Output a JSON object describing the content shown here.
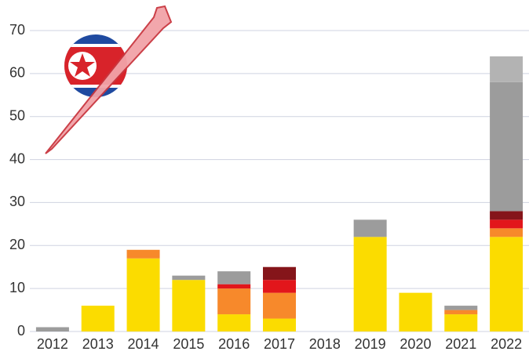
{
  "chart_data": {
    "type": "stacked-bar",
    "categories": [
      "2012",
      "2013",
      "2014",
      "2015",
      "2016",
      "2017",
      "2018",
      "2019",
      "2020",
      "2021",
      "2022"
    ],
    "series": [
      {
        "color": "#fbdc00",
        "values": [
          0,
          6,
          17,
          12,
          4,
          3,
          0,
          22,
          9,
          4,
          22
        ]
      },
      {
        "color": "#f7892b",
        "values": [
          0,
          0,
          2,
          0,
          6,
          6,
          0,
          0,
          0,
          1,
          2
        ]
      },
      {
        "color": "#e2161b",
        "values": [
          0,
          0,
          0,
          0,
          1,
          3,
          0,
          0,
          0,
          0,
          2
        ]
      },
      {
        "color": "#85151a",
        "values": [
          0,
          0,
          0,
          0,
          0,
          3,
          0,
          0,
          0,
          0,
          2
        ]
      },
      {
        "color": "#9c9c9c",
        "values": [
          1,
          0,
          0,
          1,
          3,
          0,
          0,
          4,
          0,
          1,
          30
        ]
      },
      {
        "color": "#b3b3b3",
        "values": [
          0,
          0,
          0,
          0,
          0,
          0,
          0,
          0,
          0,
          0,
          6
        ]
      }
    ],
    "ylim": [
      0,
      70
    ],
    "yticks": [
      0,
      10,
      20,
      30,
      40,
      50,
      60,
      70
    ],
    "grid": true
  }
}
